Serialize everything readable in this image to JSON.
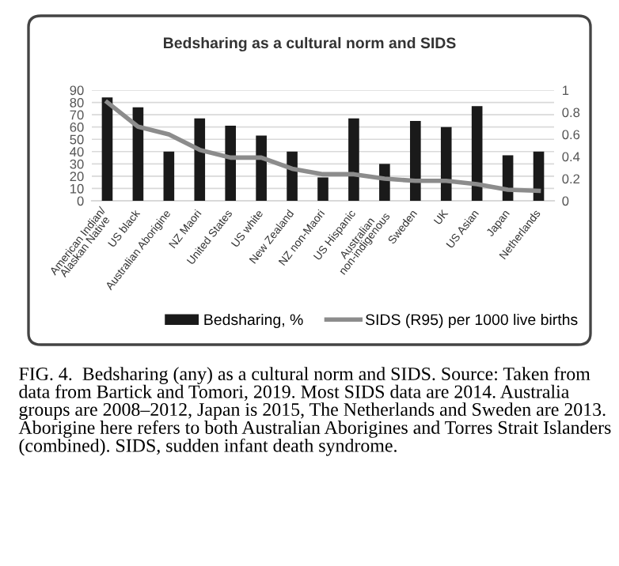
{
  "chart_data": {
    "type": "bar",
    "title": "Bedsharing as a cultural norm and SIDS",
    "categories": [
      "American Indian/\nAlaskan Native",
      "US black",
      "Australian Aborigine",
      "NZ Maori",
      "United States",
      "US white",
      "New Zealand",
      "NZ non-Maori",
      "US Hispanic",
      "Australian\nnon-indigenous",
      "Sweden",
      "UK",
      "US Asian",
      "Japan",
      "Netherlands"
    ],
    "series": [
      {
        "name": "Bedsharing, %",
        "color": "#1a1a1a",
        "values": [
          84,
          76,
          40,
          67,
          61,
          53,
          40,
          19,
          67,
          30,
          65,
          60,
          77,
          37,
          40
        ]
      },
      {
        "name": "SIDS (R95) per 1000 live births",
        "type": "line",
        "axis": "y2",
        "color": "#8c8c8c",
        "values": [
          0.89,
          0.67,
          0.6,
          0.46,
          0.39,
          0.39,
          0.29,
          0.24,
          0.24,
          0.2,
          0.18,
          0.18,
          0.15,
          0.1,
          0.09
        ]
      }
    ],
    "ylim": [
      0,
      90
    ],
    "yticks": [
      0,
      10,
      20,
      30,
      40,
      50,
      60,
      70,
      80,
      90
    ],
    "y2lim": [
      0,
      1
    ],
    "y2ticks": [
      0,
      0.2,
      0.4,
      0.6,
      0.8,
      1
    ],
    "grid": "y",
    "legend": "bottom",
    "marker": "none",
    "line_style": "solid",
    "annotations": [
      "FIG. 4.  Bedsharing (any) as a cultural norm and SIDS. Source: Taken from data from Bartick and Tomori, 2019. Most SIDS data are 2014. Australia groups are 2008–2012, Japan is 2015, The Netherlands and Sweden are 2013. Aborigine here refers to both Australian Aborigines and Torres Strait Islanders (combined). SIDS, sudden infant death syndrome."
    ]
  }
}
